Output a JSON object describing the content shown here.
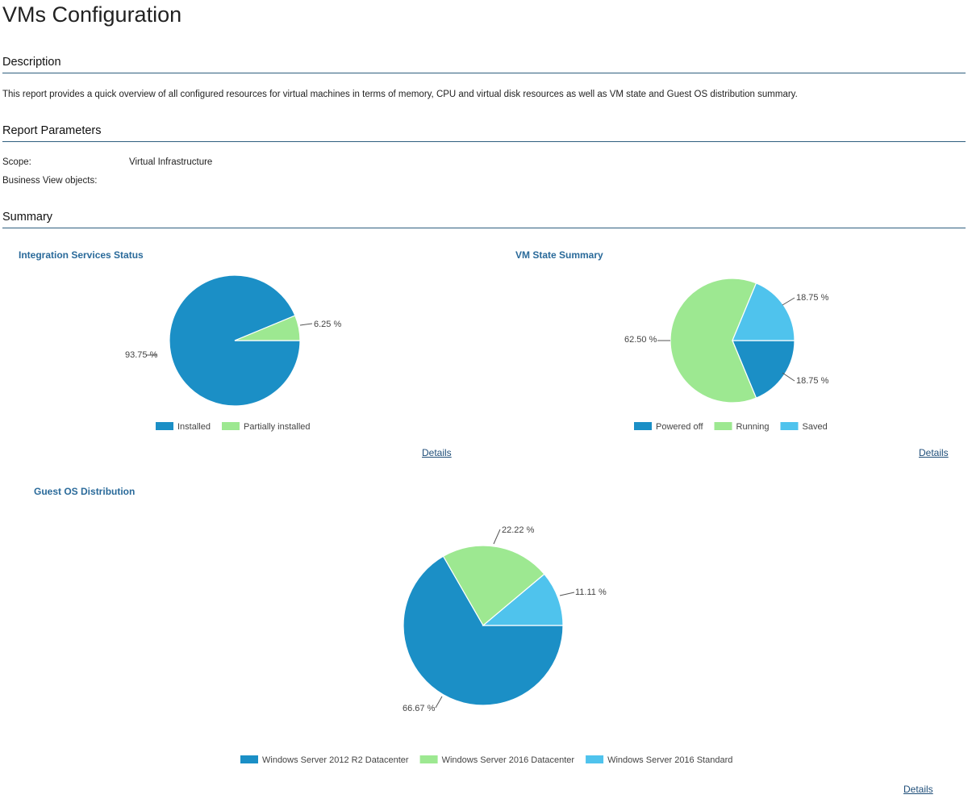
{
  "page": {
    "title": "VMs Configuration"
  },
  "description": {
    "heading": "Description",
    "text": "This report provides a quick overview of all configured resources for virtual machines in terms of memory, CPU and virtual disk resources as well as VM state and Guest OS distribution summary."
  },
  "parameters": {
    "heading": "Report Parameters",
    "scope_label": "Scope:",
    "scope_value": "Virtual Infrastructure",
    "business_view_label": "Business View objects:",
    "business_view_value": ""
  },
  "summary": {
    "heading": "Summary",
    "details_label": "Details"
  },
  "colors": {
    "dark_blue": "#1b8fc6",
    "light_green": "#9de891",
    "light_blue": "#4fc3ed"
  },
  "chart_data": [
    {
      "type": "pie",
      "title": "Integration Services Status",
      "series": [
        {
          "name": "Installed",
          "value": 93.75,
          "label": "93.75 %",
          "color": "#1b8fc6"
        },
        {
          "name": "Partially installed",
          "value": 6.25,
          "label": "6.25 %",
          "color": "#9de891"
        }
      ]
    },
    {
      "type": "pie",
      "title": "VM State Summary",
      "series": [
        {
          "name": "Powered off",
          "value": 18.75,
          "label": "18.75 %",
          "color": "#1b8fc6"
        },
        {
          "name": "Running",
          "value": 62.5,
          "label": "62.50 %",
          "color": "#9de891"
        },
        {
          "name": "Saved",
          "value": 18.75,
          "label": "18.75 %",
          "color": "#4fc3ed"
        }
      ]
    },
    {
      "type": "pie",
      "title": "Guest OS Distribution",
      "series": [
        {
          "name": "Windows Server 2012 R2 Datacenter",
          "value": 66.67,
          "label": "66.67 %",
          "color": "#1b8fc6"
        },
        {
          "name": "Windows Server 2016 Datacenter",
          "value": 22.22,
          "label": "22.22 %",
          "color": "#9de891"
        },
        {
          "name": "Windows Server 2016 Standard",
          "value": 11.11,
          "label": "11.11 %",
          "color": "#4fc3ed"
        }
      ]
    }
  ]
}
